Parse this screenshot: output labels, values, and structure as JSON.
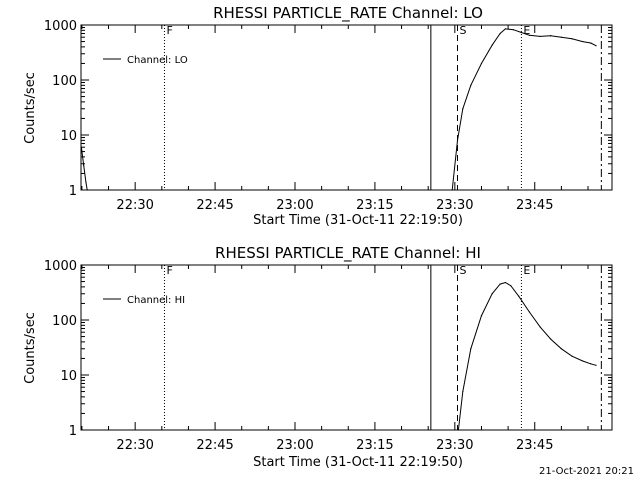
{
  "chart_data": [
    {
      "type": "line",
      "title": "RHESSI PARTICLE_RATE Channel: LO",
      "xlabel": "Start Time (31-Oct-11 22:19:50)",
      "ylabel": "Counts/sec",
      "yscale": "log",
      "ylim": [
        1,
        1000
      ],
      "xlim": [
        "22:19:50",
        "23:59:30"
      ],
      "xticks": [
        "22:30",
        "22:45",
        "23:00",
        "23:15",
        "23:30",
        "23:45"
      ],
      "yticks": [
        "1",
        "10",
        "100",
        "1000"
      ],
      "grid": false,
      "legend": {
        "placement": "top-left",
        "entries": [
          "Channel: LO"
        ]
      },
      "series": [
        {
          "name": "Channel: LO",
          "x": [
            "22:19:55",
            "22:20:20",
            "22:20:45",
            "22:21:00",
            "23:29:30",
            "23:30:30",
            "23:31:30",
            "23:33:00",
            "23:35:00",
            "23:37:00",
            "23:38:30",
            "23:39:30",
            "23:41:00",
            "23:42:30",
            "23:44:00",
            "23:46:00",
            "23:48:00",
            "23:50:00",
            "23:52:00",
            "23:54:00",
            "23:55:30",
            "23:56:30"
          ],
          "y": [
            6,
            2.8,
            1.4,
            1,
            1,
            8,
            30,
            80,
            200,
            430,
            700,
            850,
            820,
            730,
            650,
            620,
            640,
            600,
            560,
            500,
            470,
            420
          ]
        }
      ],
      "markers": [
        {
          "label": "F",
          "time": "22:35:30",
          "style": "dotted"
        },
        {
          "label": "",
          "time": "23:25:30",
          "style": "solid"
        },
        {
          "label": "S",
          "time": "23:30:30",
          "style": "dashed"
        },
        {
          "label": "E",
          "time": "23:42:30",
          "style": "dotted"
        },
        {
          "label": "",
          "time": "23:57:30",
          "style": "dashdot"
        }
      ]
    },
    {
      "type": "line",
      "title": "RHESSI PARTICLE_RATE Channel: HI",
      "xlabel": "Start Time (31-Oct-11 22:19:50)",
      "ylabel": "Counts/sec",
      "yscale": "log",
      "ylim": [
        1,
        1000
      ],
      "xlim": [
        "22:19:50",
        "23:59:30"
      ],
      "xticks": [
        "22:30",
        "22:45",
        "23:00",
        "23:15",
        "23:30",
        "23:45"
      ],
      "yticks": [
        "1",
        "10",
        "100",
        "1000"
      ],
      "grid": false,
      "legend": {
        "placement": "top-left",
        "entries": [
          "Channel: HI"
        ]
      },
      "series": [
        {
          "name": "Channel: HI",
          "x": [
            "23:30:40",
            "23:31:30",
            "23:33:00",
            "23:35:00",
            "23:37:00",
            "23:38:30",
            "23:39:30",
            "23:40:30",
            "23:42:00",
            "23:44:00",
            "23:46:00",
            "23:48:00",
            "23:50:00",
            "23:52:00",
            "23:54:00",
            "23:55:30",
            "23:56:30"
          ],
          "y": [
            1,
            5,
            30,
            120,
            300,
            450,
            480,
            420,
            270,
            140,
            75,
            45,
            30,
            22,
            18,
            16,
            15
          ]
        }
      ],
      "markers": [
        {
          "label": "F",
          "time": "22:35:30",
          "style": "dotted"
        },
        {
          "label": "",
          "time": "23:25:30",
          "style": "solid"
        },
        {
          "label": "S",
          "time": "23:30:30",
          "style": "dashed"
        },
        {
          "label": "E",
          "time": "23:42:30",
          "style": "dotted"
        },
        {
          "label": "",
          "time": "23:57:30",
          "style": "dashdot"
        }
      ]
    }
  ],
  "footer": {
    "timestamp": "21-Oct-2021 20:21"
  },
  "colors": {
    "foreground": "#000000",
    "background": "#ffffff"
  }
}
